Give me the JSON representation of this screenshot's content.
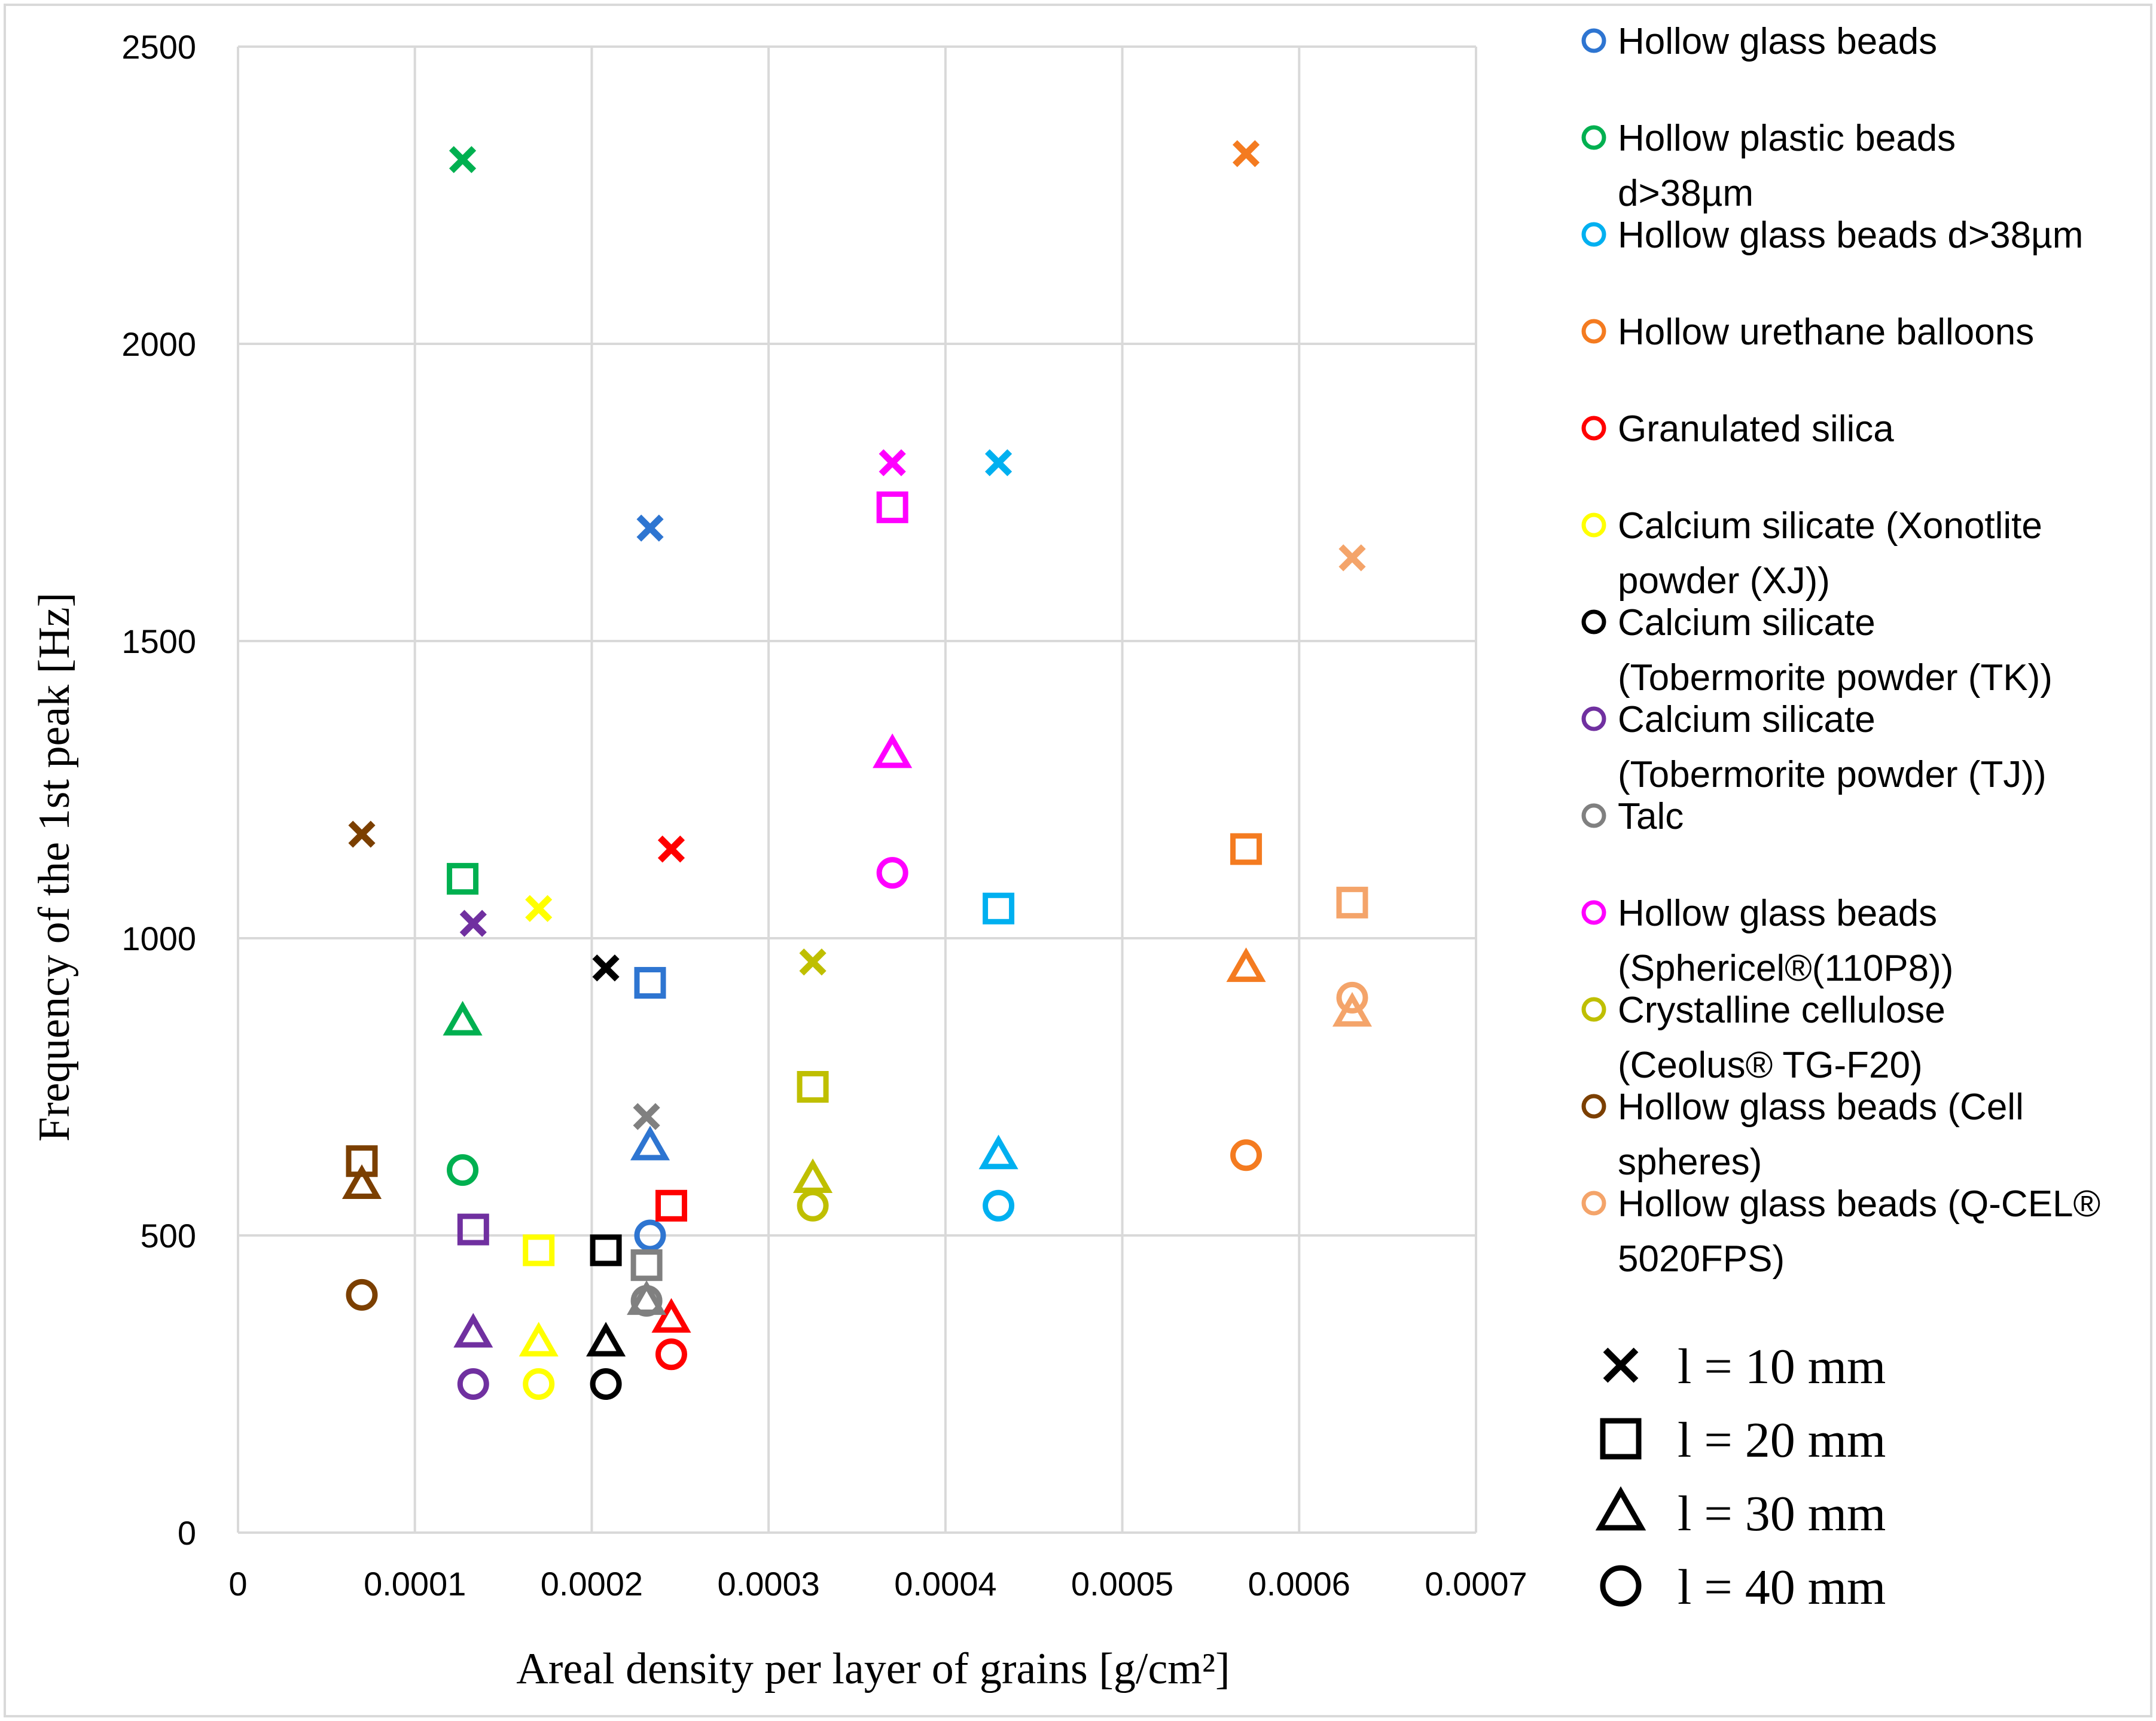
{
  "chart_data": {
    "type": "scatter",
    "title": "",
    "xlabel": "Areal density per layer of grains [g/cm²]",
    "ylabel": "Frequency of the 1st peak [Hz]",
    "xlim": [
      0,
      0.0007
    ],
    "ylim": [
      0,
      2500
    ],
    "x_ticks": [
      "0",
      "0.0001",
      "0.0002",
      "0.0003",
      "0.0004",
      "0.0005",
      "0.0006",
      "0.0007"
    ],
    "y_ticks": [
      "0",
      "500",
      "1000",
      "1500",
      "2000",
      "2500"
    ],
    "grid": true,
    "legend_position": "right",
    "series": [
      {
        "name": "Hollow glass beads",
        "color": "#2E75D1",
        "x": 0.000233,
        "values": {
          "l10": 1690,
          "l20": 925,
          "l30": 650,
          "l40": 500
        }
      },
      {
        "name": "Hollow plastic beads d>38µm",
        "color": "#00B050",
        "x": 0.000127,
        "values": {
          "l10": 2310,
          "l20": 1100,
          "l30": 860,
          "l40": 610
        }
      },
      {
        "name": "Hollow glass beads d>38µm",
        "color": "#00B0F0",
        "x": 0.00043,
        "values": {
          "l10": 1800,
          "l20": 1050,
          "l30": 635,
          "l40": 550
        }
      },
      {
        "name": "Hollow urethane balloons",
        "color": "#F47B20",
        "x": 0.00057,
        "values": {
          "l10": 2320,
          "l20": 1150,
          "l30": 950,
          "l40": 635
        }
      },
      {
        "name": "Granulated silica",
        "color": "#FF0000",
        "x": 0.000245,
        "values": {
          "l10": 1150,
          "l20": 550,
          "l30": 360,
          "l40": 300
        }
      },
      {
        "name": "Calcium silicate (Xonotlite powder (XJ))",
        "color": "#FFFF00",
        "x": 0.00017,
        "values": {
          "l10": 1050,
          "l20": 475,
          "l30": 320,
          "l40": 250
        }
      },
      {
        "name": "Calcium silicate (Tobermorite powder (TK))",
        "color": "#000000",
        "x": 0.000208,
        "values": {
          "l10": 950,
          "l20": 475,
          "l30": 320,
          "l40": 250
        }
      },
      {
        "name": "Calcium silicate (Tobermorite powder (TJ))",
        "color": "#7030A0",
        "x": 0.000133,
        "values": {
          "l10": 1025,
          "l20": 510,
          "l30": 335,
          "l40": 250
        }
      },
      {
        "name": "Talc",
        "color": "#808080",
        "x": 0.000231,
        "values": {
          "l10": 700,
          "l20": 450,
          "l30": 390,
          "l40": 390
        }
      },
      {
        "name": "Hollow glass beads (Sphericel®(110P8))",
        "color": "#FF00FF",
        "x": 0.00037,
        "values": {
          "l10": 1800,
          "l20": 1725,
          "l30": 1310,
          "l40": 1110
        }
      },
      {
        "name": "Crystalline cellulose (Ceolus® TG-F20)",
        "color": "#BFBF00",
        "x": 0.000325,
        "values": {
          "l10": 960,
          "l20": 750,
          "l30": 595,
          "l40": 550
        }
      },
      {
        "name": "Hollow glass beads (Cell spheres)",
        "color": "#7B3F00",
        "x": 7e-05,
        "values": {
          "l10": 1175,
          "l20": 625,
          "l30": 585,
          "l40": 400
        }
      },
      {
        "name": "Hollow glass beads (Q-CEL® 5020FPS)",
        "color": "#F4A46A",
        "x": 0.00063,
        "values": {
          "l10": 1640,
          "l20": 1060,
          "l30": 875,
          "l40": 900
        }
      }
    ],
    "legend_lines": [
      [
        "Hollow glass beads"
      ],
      [
        "Hollow plastic beads",
        "d>38µm"
      ],
      [
        "Hollow glass beads d>38µm"
      ],
      [
        "Hollow urethane balloons"
      ],
      [
        "Granulated silica"
      ],
      [
        "Calcium silicate (Xonotlite",
        "powder (XJ))"
      ],
      [
        "Calcium silicate",
        "(Tobermorite powder (TK))"
      ],
      [
        "Calcium silicate",
        "(Tobermorite powder (TJ))"
      ],
      [
        "Talc"
      ],
      [
        "Hollow glass beads",
        "(Sphericel®(110P8))"
      ],
      [
        "Crystalline cellulose",
        "(Ceolus® TG-F20)"
      ],
      [
        "Hollow glass beads (Cell",
        "spheres)"
      ],
      [
        "Hollow glass beads (Q-CEL®",
        "5020FPS)"
      ]
    ],
    "marker_legend": [
      {
        "key": "l10",
        "shape": "x",
        "label": "l = 10 mm"
      },
      {
        "key": "l20",
        "shape": "square",
        "label": "l = 20 mm"
      },
      {
        "key": "l30",
        "shape": "triangle",
        "label": "l = 30 mm"
      },
      {
        "key": "l40",
        "shape": "circle",
        "label": "l = 40 mm"
      }
    ]
  }
}
